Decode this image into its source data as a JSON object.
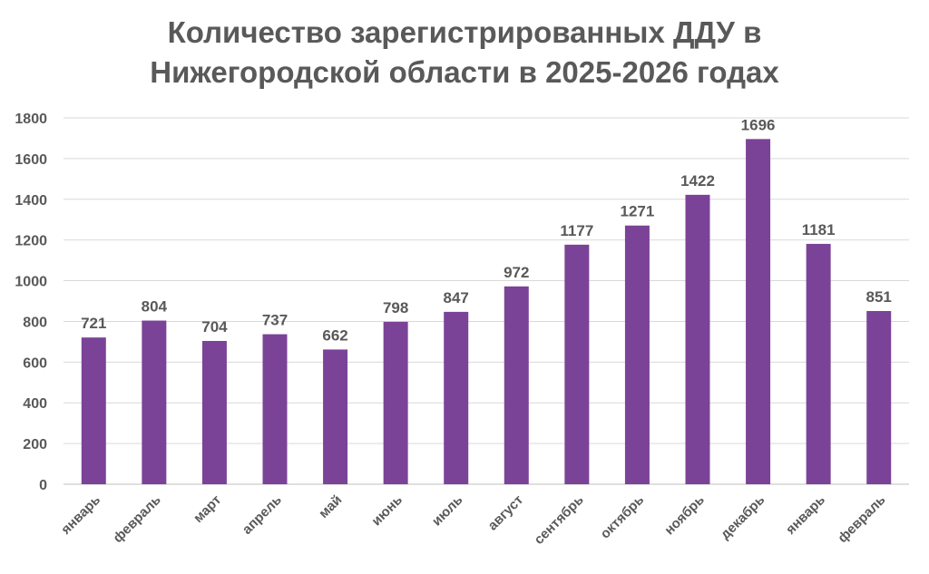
{
  "chart_data": {
    "type": "bar",
    "title_lines": [
      "Количество зарегистрированных ДДУ в",
      "Нижегородской области в 2025-2026 годах"
    ],
    "categories": [
      "январь",
      "февраль",
      "март",
      "апрель",
      "май",
      "июнь",
      "июль",
      "август",
      "сентябрь",
      "октябрь",
      "ноябрь",
      "декабрь",
      "январь",
      "февраль"
    ],
    "values": [
      721,
      804,
      704,
      737,
      662,
      798,
      847,
      972,
      1177,
      1271,
      1422,
      1696,
      1181,
      851
    ],
    "ylim": [
      0,
      1800
    ],
    "yticks": [
      0,
      200,
      400,
      600,
      800,
      1000,
      1200,
      1400,
      1600,
      1800
    ],
    "xlabel": "",
    "ylabel": "",
    "grid": true,
    "bar_color": "#7B4397",
    "data_labels": true
  }
}
